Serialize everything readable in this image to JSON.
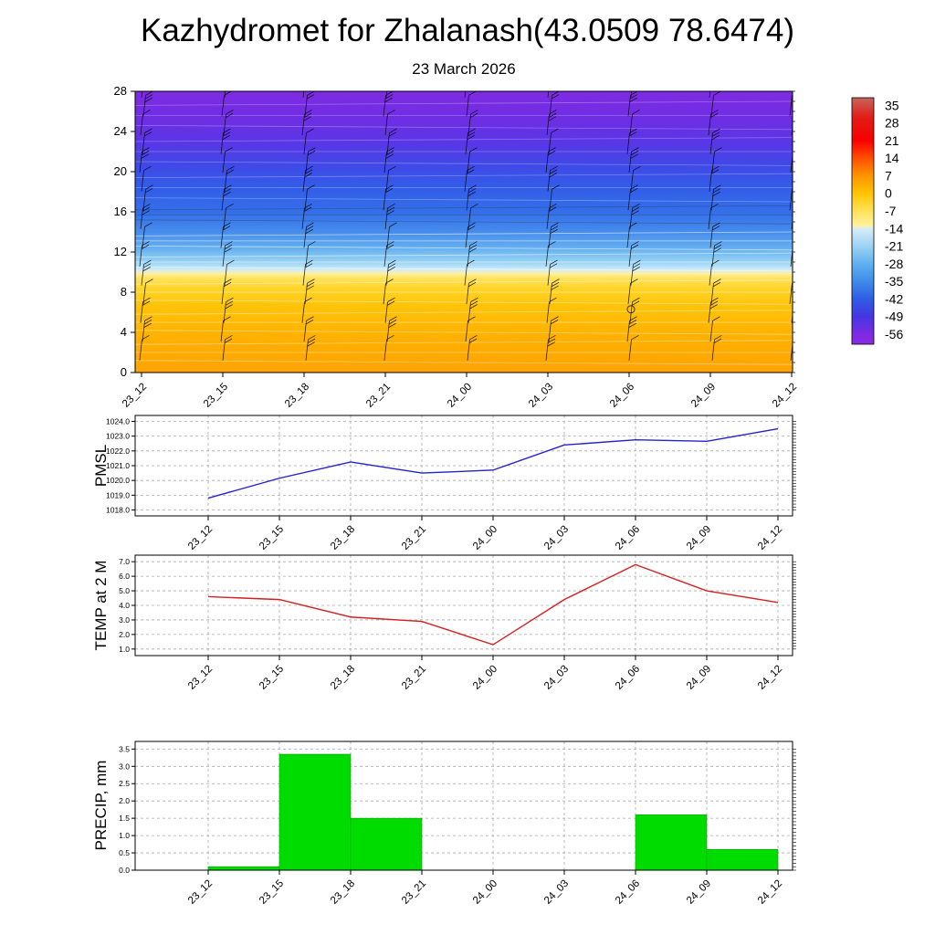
{
  "title": "Kazhydromet for Zhalanash(43.0509 78.6474)",
  "time_labels": [
    "23_12",
    "23_15",
    "23_18",
    "23_21",
    "24_00",
    "24_03",
    "24_06",
    "24_09",
    "24_12"
  ],
  "chart_data": [
    {
      "name": "upper-air-temperature-wind",
      "type": "heatmap",
      "title": "23 March 2026",
      "categories": [
        "23_12",
        "23_15",
        "23_18",
        "23_21",
        "24_00",
        "24_03",
        "24_06",
        "24_09",
        "24_12"
      ],
      "ylim": [
        0,
        28
      ],
      "yticks": [
        0,
        4,
        8,
        12,
        16,
        20,
        24,
        28
      ],
      "features": [
        "wind-barbs",
        "filled-temperature-contours",
        "calm-wind-circle"
      ],
      "colorbar_ticks": [
        35,
        28,
        21,
        14,
        7,
        0,
        -7,
        -14,
        -21,
        -28,
        -35,
        -42,
        -49,
        -56
      ],
      "colorbar_domain": [
        38,
        -60
      ],
      "palette": [
        {
          "v": 38,
          "c": "#c4645c"
        },
        {
          "v": 30,
          "c": "#e31c14"
        },
        {
          "v": 21,
          "c": "#f80000"
        },
        {
          "v": 14,
          "c": "#ff4e00"
        },
        {
          "v": 7,
          "c": "#ff9400"
        },
        {
          "v": 0,
          "c": "#ffc400"
        },
        {
          "v": -7,
          "c": "#ffe25a"
        },
        {
          "v": -13,
          "c": "#fff2a2"
        },
        {
          "v": -14,
          "c": "#d8edf8"
        },
        {
          "v": -21,
          "c": "#9cd3f2"
        },
        {
          "v": -28,
          "c": "#60b1ee"
        },
        {
          "v": -35,
          "c": "#3e8ce9"
        },
        {
          "v": -42,
          "c": "#2f5ce5"
        },
        {
          "v": -49,
          "c": "#4636e2"
        },
        {
          "v": -56,
          "c": "#7b2be2"
        },
        {
          "v": -60,
          "c": "#8a2be2"
        }
      ],
      "field_gradient": [
        {
          "o": 0.0,
          "c": "#7e2be2"
        },
        {
          "o": 0.1,
          "c": "#6e2ee4"
        },
        {
          "o": 0.18,
          "c": "#5936e6"
        },
        {
          "o": 0.26,
          "c": "#4148e7"
        },
        {
          "o": 0.34,
          "c": "#335ce8"
        },
        {
          "o": 0.43,
          "c": "#346fe9"
        },
        {
          "o": 0.5,
          "c": "#468cec"
        },
        {
          "o": 0.565,
          "c": "#6ab4f1"
        },
        {
          "o": 0.61,
          "c": "#9dd6f5"
        },
        {
          "o": 0.635,
          "c": "#d2ecf9"
        },
        {
          "o": 0.648,
          "c": "#fdf0a0"
        },
        {
          "o": 0.665,
          "c": "#ffe25e"
        },
        {
          "o": 0.7,
          "c": "#ffd52a"
        },
        {
          "o": 0.76,
          "c": "#ffc40a"
        },
        {
          "o": 0.87,
          "c": "#ffb100"
        },
        {
          "o": 1.0,
          "c": "#ffa300"
        }
      ]
    },
    {
      "name": "pmsl",
      "type": "line",
      "ylabel": "PMSL",
      "line_color": "#2323cd",
      "categories": [
        "23_12",
        "23_15",
        "23_18",
        "23_21",
        "24_00",
        "24_03",
        "24_06",
        "24_09",
        "24_12"
      ],
      "values": [
        1018.8,
        1020.15,
        1021.25,
        1020.5,
        1020.7,
        1022.4,
        1022.75,
        1022.65,
        1023.5
      ],
      "ylim": [
        1018.0,
        1024.0
      ],
      "yticks": [
        1018.0,
        1019.0,
        1020.0,
        1021.0,
        1022.0,
        1023.0,
        1024.0
      ]
    },
    {
      "name": "temp-2m",
      "type": "line",
      "ylabel": "TEMP at 2 M",
      "line_color": "#d42020",
      "categories": [
        "23_12",
        "23_15",
        "23_18",
        "23_21",
        "24_00",
        "24_03",
        "24_06",
        "24_09",
        "24_12"
      ],
      "values": [
        4.6,
        4.4,
        3.2,
        2.9,
        1.3,
        4.4,
        6.8,
        5.0,
        4.2
      ],
      "ylim": [
        1.0,
        7.0
      ],
      "yticks": [
        1.0,
        2.0,
        3.0,
        4.0,
        5.0,
        6.0,
        7.0
      ]
    },
    {
      "name": "precip",
      "type": "bar",
      "ylabel": "PRECIP, mm",
      "bar_color": "#00dc00",
      "categories": [
        "23_12",
        "23_15",
        "23_18",
        "23_21",
        "24_00",
        "24_03",
        "24_06",
        "24_09",
        "24_12"
      ],
      "values": [
        0,
        0.1,
        3.35,
        1.5,
        0,
        0,
        0,
        1.6,
        0.6
      ],
      "ylim": [
        0.0,
        3.5
      ],
      "yticks": [
        0.0,
        0.5,
        1.0,
        1.5,
        2.0,
        2.5,
        3.0,
        3.5
      ]
    }
  ]
}
